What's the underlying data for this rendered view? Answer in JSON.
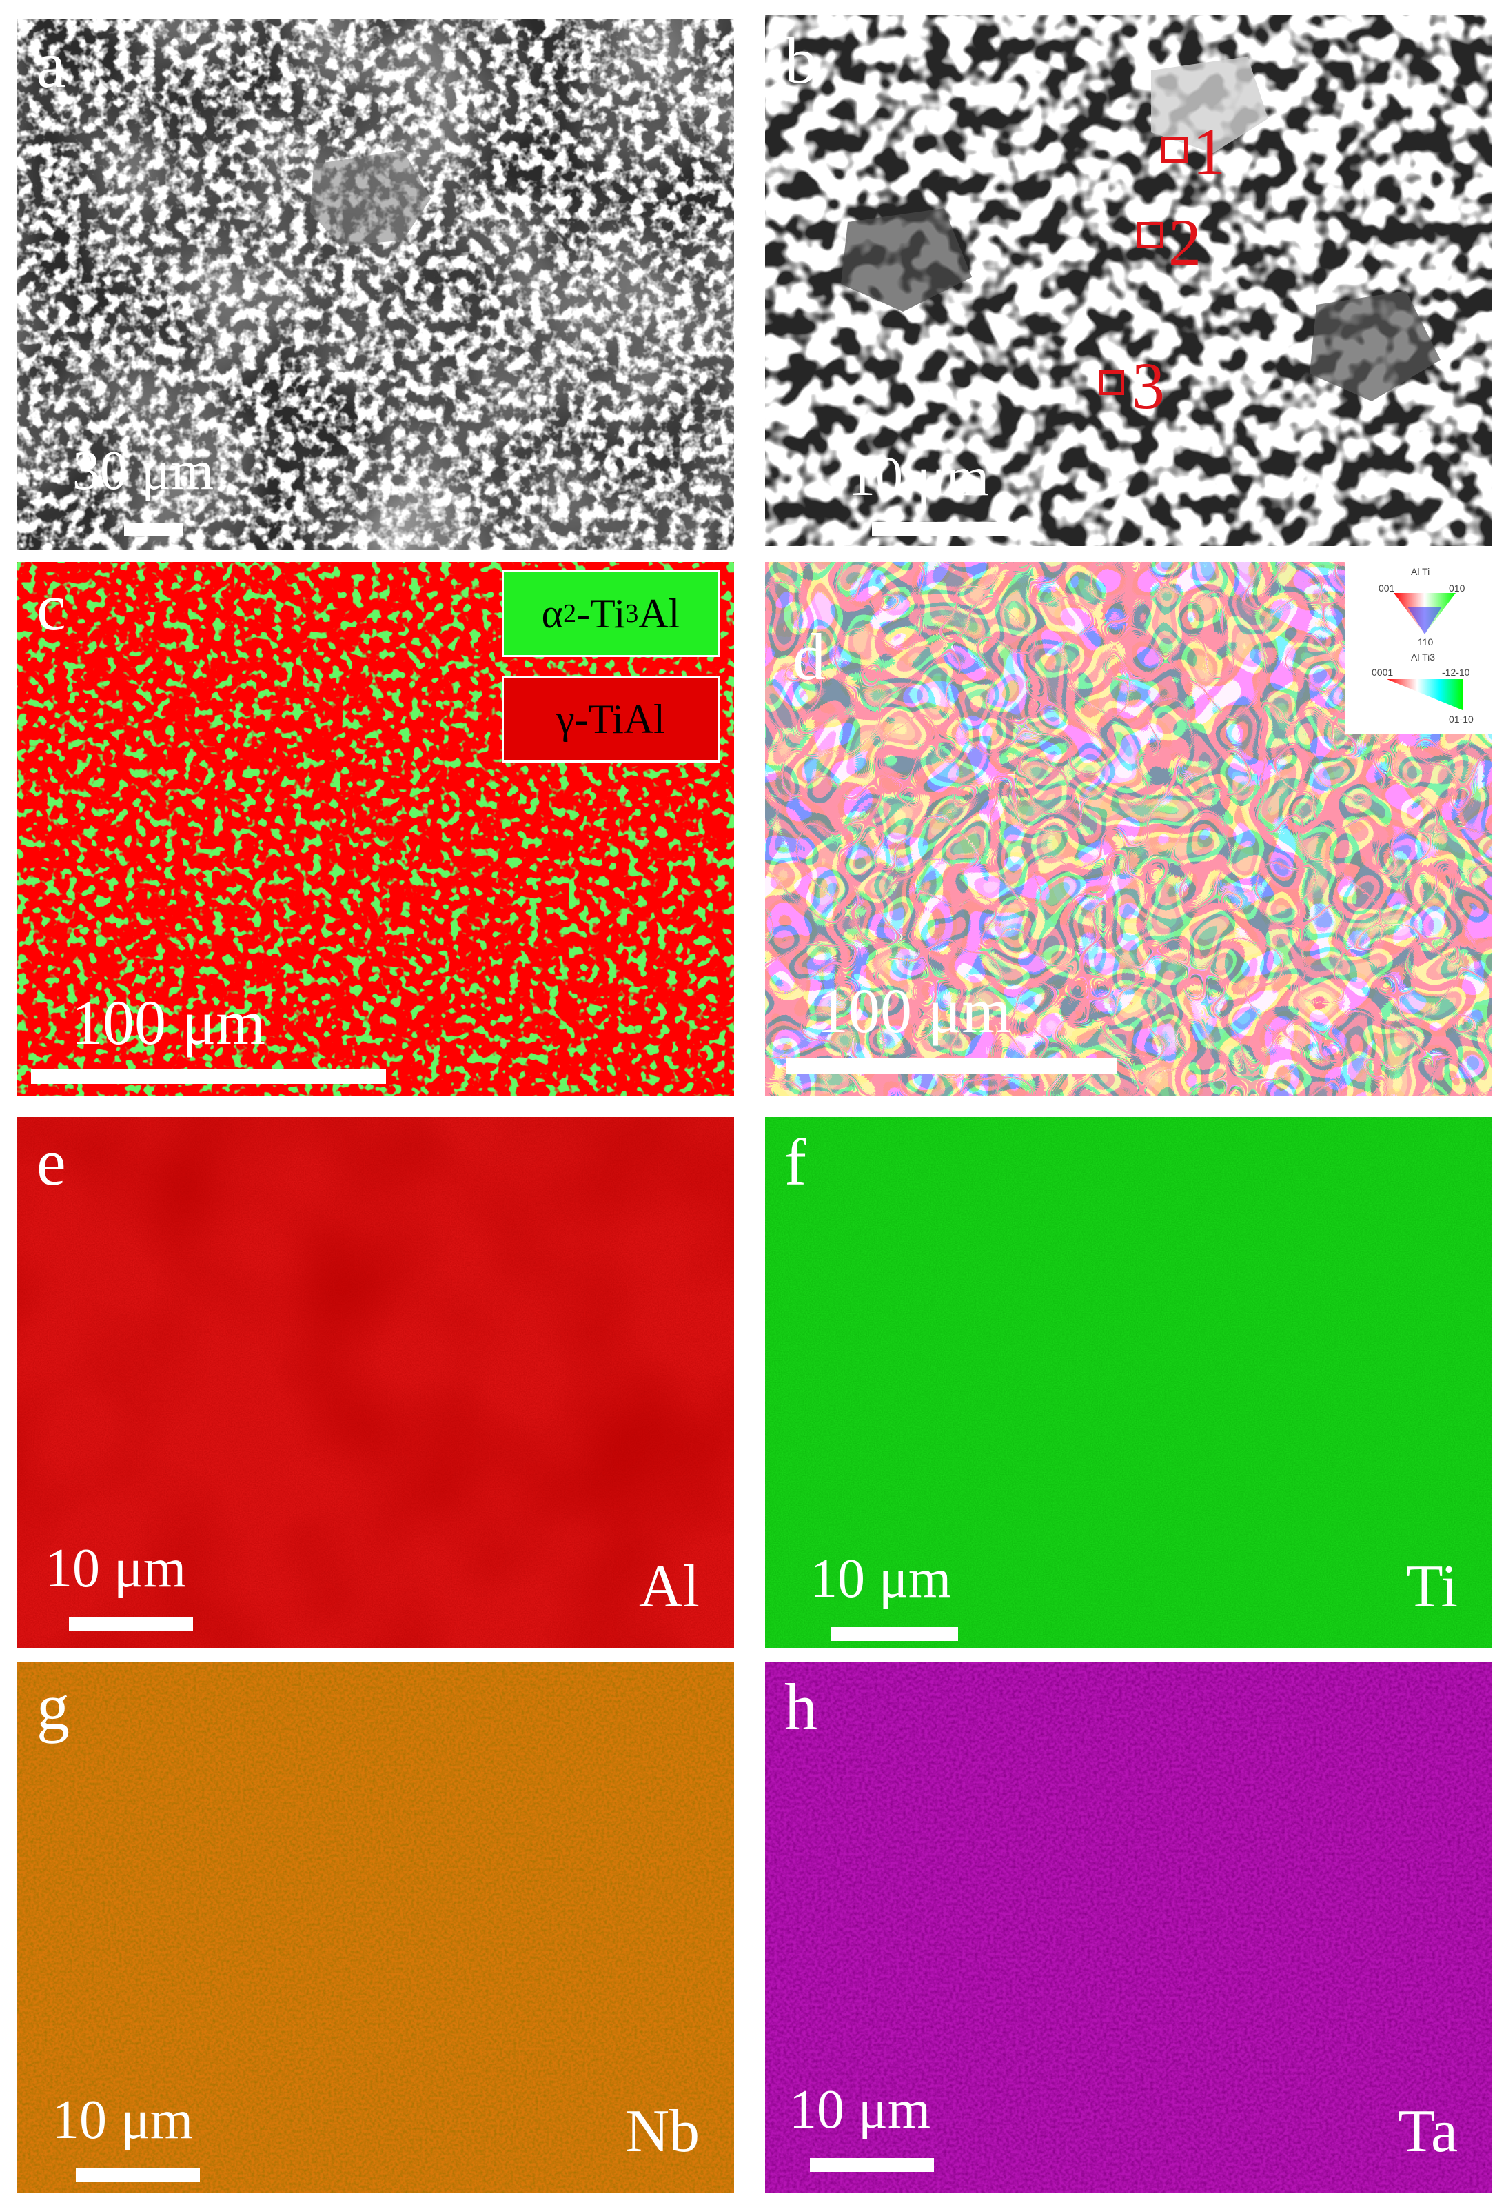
{
  "panels": {
    "a": {
      "label": "a",
      "scale": "30 μm"
    },
    "b": {
      "label": "b",
      "scale": "10 μm",
      "markers": [
        "1",
        "2",
        "3"
      ]
    },
    "c": {
      "label": "c",
      "scale": "100 μm",
      "legend_alpha2_prefix": "α",
      "legend_alpha2_sub1": "2",
      "legend_alpha2_mid": "-Ti",
      "legend_alpha2_sub2": "3",
      "legend_alpha2_suffix": "Al",
      "legend_gamma": "γ-TiAl"
    },
    "d": {
      "label": "d",
      "scale": "100 μm",
      "ipf_title1": "Al Ti",
      "ipf_001": "001",
      "ipf_010": "010",
      "ipf_110": "110",
      "ipf_title2": "Al Ti3",
      "ipf_0001": "0001",
      "ipf_m1210": "-12-10",
      "ipf_0110": "01-10"
    },
    "e": {
      "label": "e",
      "scale": "10 μm",
      "element": "Al"
    },
    "f": {
      "label": "f",
      "scale": "10 μm",
      "element": "Ti"
    },
    "g": {
      "label": "g",
      "scale": "10 μm",
      "element": "Nb"
    },
    "h": {
      "label": "h",
      "scale": "10 μm",
      "element": "Ta"
    }
  },
  "colors": {
    "map_al": "#e01414",
    "map_ti": "#14d214",
    "map_nb": "#d7780a",
    "map_ta": "#b414b4",
    "phase_gamma": "#ff0000",
    "phase_alpha2": "#22ee22",
    "marker": "#e0141a"
  }
}
